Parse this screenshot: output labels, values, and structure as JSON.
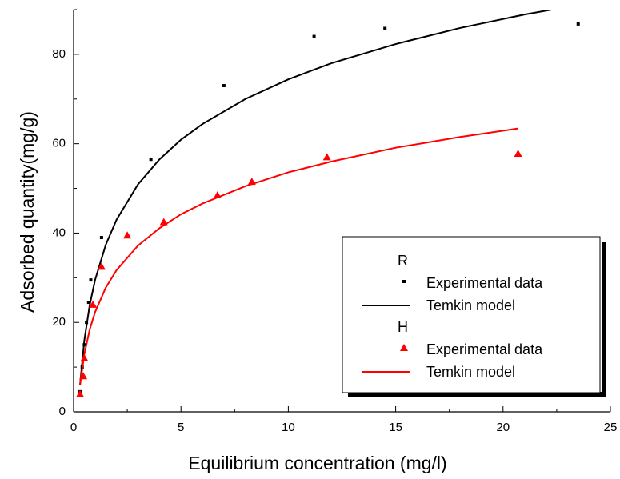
{
  "chart_data": {
    "type": "scatter",
    "xlabel": "Equilibrium concentration (mg/l)",
    "ylabel": "Adsorbed quantity(mg/g)",
    "xlim": [
      0,
      25
    ],
    "ylim": [
      0,
      90
    ],
    "xticks": [
      0,
      5,
      10,
      15,
      20,
      25
    ],
    "yticks": [
      0,
      20,
      40,
      60,
      80
    ],
    "xminorticks": [
      2.5,
      7.5,
      12.5,
      17.5,
      22.5
    ],
    "yminorticks": [
      10,
      30,
      50,
      70,
      90
    ],
    "groups": [
      {
        "name": "R",
        "color": "#000000",
        "series": [
          {
            "name": "Experimental data",
            "kind": "scatter",
            "marker": "square",
            "x": [
              0.3,
              0.4,
              0.5,
              0.6,
              0.7,
              0.8,
              1.3,
              3.6,
              7.0,
              11.2,
              14.5,
              23.5
            ],
            "values": [
              4.5,
              10,
              15,
              20,
              24.5,
              29.5,
              39,
              56.5,
              73,
              84,
              85.8,
              86.8
            ]
          },
          {
            "name": "Temkin model",
            "kind": "line",
            "x": [
              0.3,
              0.5,
              0.75,
              1,
              1.5,
              2,
              3,
              4,
              5,
              6,
              8,
              10,
              12,
              15,
              18,
              21,
              22.5
            ],
            "values": [
              6.0,
              16.0,
              23.9,
              29.5,
              37.4,
              43.0,
              50.9,
              56.5,
              60.9,
              64.4,
              70.0,
              74.4,
              78.0,
              82.3,
              85.9,
              88.9,
              90.2
            ]
          }
        ]
      },
      {
        "name": "H",
        "color": "#ff0000",
        "series": [
          {
            "name": "Experimental data",
            "kind": "scatter",
            "marker": "triangle",
            "x": [
              0.3,
              0.45,
              0.5,
              0.9,
              1.3,
              2.5,
              4.2,
              6.7,
              8.3,
              11.8,
              20.7
            ],
            "values": [
              4,
              8,
              12,
              24,
              32.5,
              39.5,
              42.5,
              48.5,
              51.5,
              57,
              57.8
            ]
          },
          {
            "name": "Temkin model",
            "kind": "line",
            "x": [
              0.3,
              0.5,
              0.75,
              1,
              1.5,
              2,
              3,
              4,
              5,
              6,
              8,
              10,
              12,
              15,
              18,
              20.7
            ],
            "values": [
              6.0,
              12.9,
              18.4,
              22.3,
              27.8,
              31.7,
              37.2,
              41.1,
              44.2,
              46.6,
              50.5,
              53.6,
              56.0,
              59.1,
              61.5,
              63.4
            ]
          }
        ]
      }
    ]
  }
}
